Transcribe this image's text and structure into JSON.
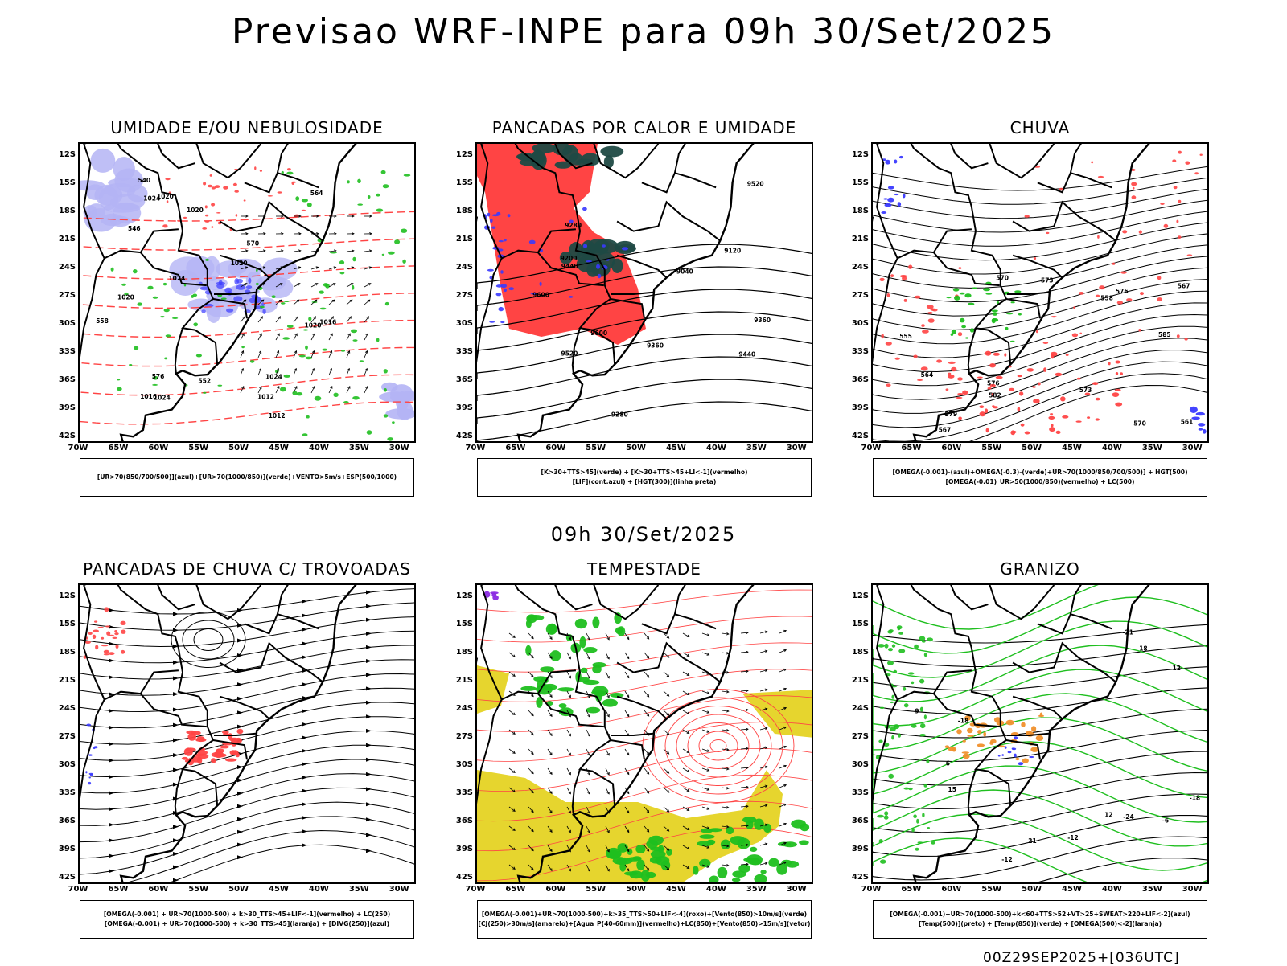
{
  "title": "Previsao WRF-INPE  para 09h 30/Set/2025",
  "subtitle": "09h 30/Set/2025",
  "footer": "00Z29SEP2025+[036UTC]",
  "lat_ticks": [
    "12S",
    "15S",
    "18S",
    "21S",
    "24S",
    "27S",
    "30S",
    "33S",
    "36S",
    "39S",
    "42S"
  ],
  "lon_ticks": [
    "70W",
    "65W",
    "60W",
    "55W",
    "50W",
    "45W",
    "40W",
    "35W",
    "30W"
  ],
  "colors": {
    "red": "#f44",
    "green": "#1fbf1f",
    "blue": "#3a3aff",
    "lavender": "#b4b4f5",
    "darkteal": "#1f4a45",
    "yellow": "#e6d52e",
    "orange": "#f0902c",
    "purple": "#8a2be2"
  },
  "panels": [
    {
      "title": "UMIDADE E/OU NEBULOSIDADE",
      "legend": [
        "[UR>70(850/700/500)](azul)+[UR>70(1000/850)](verde)+VENTO>5m/s+ESP(500/1000)"
      ],
      "contour_labels": [
        "1016",
        "1020",
        "1024",
        "1012",
        "1020",
        "1024",
        "1016",
        "1012",
        "1020",
        "1024",
        "1020",
        "1020",
        "1024",
        "576",
        "570",
        "564",
        "558",
        "552",
        "546",
        "540"
      ]
    },
    {
      "title": "PANCADAS POR CALOR E UMIDADE",
      "legend": [
        "[K>30+TTS>45](verde) + [K>30+TTS>45+LI<-1](vermelho)",
        "[LIF](cont.azul) + [HGT(300)](linha preta)"
      ],
      "contour_labels": [
        "9600",
        "9520",
        "9440",
        "9360",
        "9280",
        "9200",
        "9120",
        "9040",
        "9600",
        "9520",
        "9440",
        "9360",
        "9280"
      ]
    },
    {
      "title": "CHUVA",
      "legend": [
        "[OMEGA(-0.001)-(azul)+OMEGA(-0.3)-(verde)+UR>70(1000/850/700/500)] + HGT(500)",
        "[OMEGA(-0.01)_UR>50(1000/850)(vermelho) + LC(500)"
      ],
      "contour_labels": [
        "585",
        "579",
        "576",
        "573",
        "570",
        "567",
        "564",
        "561",
        "558",
        "555",
        "582",
        "576",
        "573",
        "570",
        "567"
      ]
    },
    {
      "title": "PANCADAS DE CHUVA C/ TROVOADAS",
      "legend": [
        "[OMEGA(-0.001) + UR>70(1000-500) + k>30_TTS>45+LIF<-1](vermelho) + LC(250)",
        "[OMEGA(-0.001) + UR>70(1000-500) + k>30_TTS>45](laranja) + [DIVG(250)](azul)"
      ],
      "contour_labels": []
    },
    {
      "title": "TEMPESTADE",
      "legend": [
        "[OMEGA(-0.001)+UR>70(1000-500)+k>35_TTS>50+LIF<-4](roxo)+[Vento(850)>10m/s](verde)",
        "[CJ(250)>30m/s](amarelo)+[Agua_P(40-60mm)](vermelho)+LC(850)+[Vento(850)>15m/s](vetor)"
      ],
      "contour_labels": []
    },
    {
      "title": "GRANIZO",
      "legend": [
        "[OMEGA(-0.001)+UR>70(1000-500)+k<60+TTS>52+VT>25+SWEAT>220+LIF<-2](azul)",
        "[Temp(500)](preto) + [Temp(850)](verde) + [OMEGA(500)<-2](laranja)"
      ],
      "contour_labels": [
        "-12",
        "-12",
        "-18",
        "-18",
        "-21",
        "-24",
        "12",
        "12",
        "6",
        "9",
        "15",
        "18",
        "21",
        "-6"
      ]
    }
  ]
}
